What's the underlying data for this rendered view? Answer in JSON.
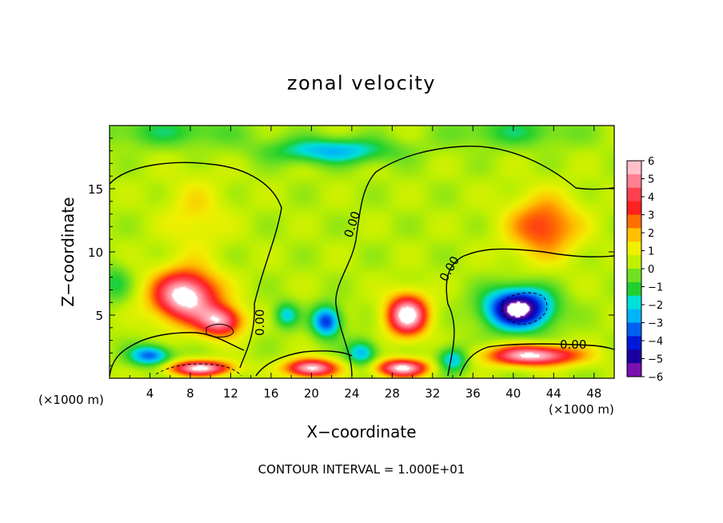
{
  "chart_data": {
    "type": "heatmap",
    "title": "zonal velocity",
    "xlabel": "X−coordinate",
    "ylabel": "Z−coordinate",
    "x_unit_note": "(×1000 m)",
    "y_unit_note": "(×1000 m)",
    "xlim": [
      0,
      50
    ],
    "ylim": [
      0,
      20
    ],
    "x_ticks": [
      "4",
      "8",
      "12",
      "16",
      "20",
      "24",
      "28",
      "32",
      "36",
      "40",
      "44",
      "48"
    ],
    "y_ticks": [
      "5",
      "10",
      "15"
    ],
    "colorbar": {
      "min": -6,
      "max": 6,
      "ticks": [
        "6",
        "5",
        "4",
        "3",
        "2",
        "1",
        "0",
        "−1",
        "−2",
        "−3",
        "−4",
        "−5",
        "−6"
      ],
      "colors": [
        "#7a10b0",
        "#1a00a0",
        "#0018d8",
        "#0060f0",
        "#00b4f8",
        "#00e0d8",
        "#20d030",
        "#70e020",
        "#c0f000",
        "#f0f000",
        "#ffc000",
        "#ff7000",
        "#ff2020",
        "#ff4050",
        "#ff8090",
        "#ffc0c8"
      ]
    },
    "background_value": 0.3,
    "features": [
      {
        "x": 8.5,
        "z": 13.0,
        "sx": 3.0,
        "sz": 3.0,
        "value": 1.2
      },
      {
        "x": 7.5,
        "z": 6.5,
        "sx": 3.2,
        "sz": 2.0,
        "value": 6.5
      },
      {
        "x": 11.0,
        "z": 4.5,
        "sx": 2.2,
        "sz": 1.2,
        "value": 5.0
      },
      {
        "x": 43.0,
        "z": 12.0,
        "sx": 3.5,
        "sz": 2.4,
        "value": 3.2
      },
      {
        "x": 29.5,
        "z": 5.0,
        "sx": 2.0,
        "sz": 1.6,
        "value": 6.5
      },
      {
        "x": 40.5,
        "z": 5.5,
        "sx": 3.2,
        "sz": 1.6,
        "value": -7.0
      },
      {
        "x": 21.5,
        "z": 4.5,
        "sx": 1.4,
        "sz": 1.2,
        "value": -4.5
      },
      {
        "x": 17.5,
        "z": 5.0,
        "sx": 1.2,
        "sz": 1.0,
        "value": -2.5
      },
      {
        "x": 22.0,
        "z": 18.0,
        "sx": 6.0,
        "sz": 1.0,
        "value": -3.0
      },
      {
        "x": 6.0,
        "z": 19.5,
        "sx": 7.0,
        "sz": 1.2,
        "value": -1.5
      },
      {
        "x": 40.0,
        "z": 19.5,
        "sx": 6.0,
        "sz": 1.2,
        "value": -1.5
      },
      {
        "x": 42.0,
        "z": 1.8,
        "sx": 4.5,
        "sz": 0.8,
        "value": 6.0
      },
      {
        "x": 20.0,
        "z": 0.8,
        "sx": 2.5,
        "sz": 0.7,
        "value": 6.0
      },
      {
        "x": 9.0,
        "z": 0.8,
        "sx": 3.0,
        "sz": 0.6,
        "value": 6.0
      },
      {
        "x": 29.0,
        "z": 0.8,
        "sx": 2.5,
        "sz": 0.7,
        "value": 6.0
      },
      {
        "x": 4.0,
        "z": 1.8,
        "sx": 2.0,
        "sz": 0.8,
        "value": -4.0
      },
      {
        "x": 25.0,
        "z": 2.0,
        "sx": 1.5,
        "sz": 1.0,
        "value": -3.0
      },
      {
        "x": 34.0,
        "z": 1.5,
        "sx": 1.5,
        "sz": 1.0,
        "value": -3.0
      },
      {
        "x": 0.5,
        "z": 7.5,
        "sx": 1.5,
        "sz": 1.5,
        "value": -1.5
      }
    ],
    "zero_contour_labels": [
      "0.00",
      "0.00",
      "0.00",
      "0.00"
    ],
    "footer_text": "CONTOUR INTERVAL =  1.000E+01"
  }
}
